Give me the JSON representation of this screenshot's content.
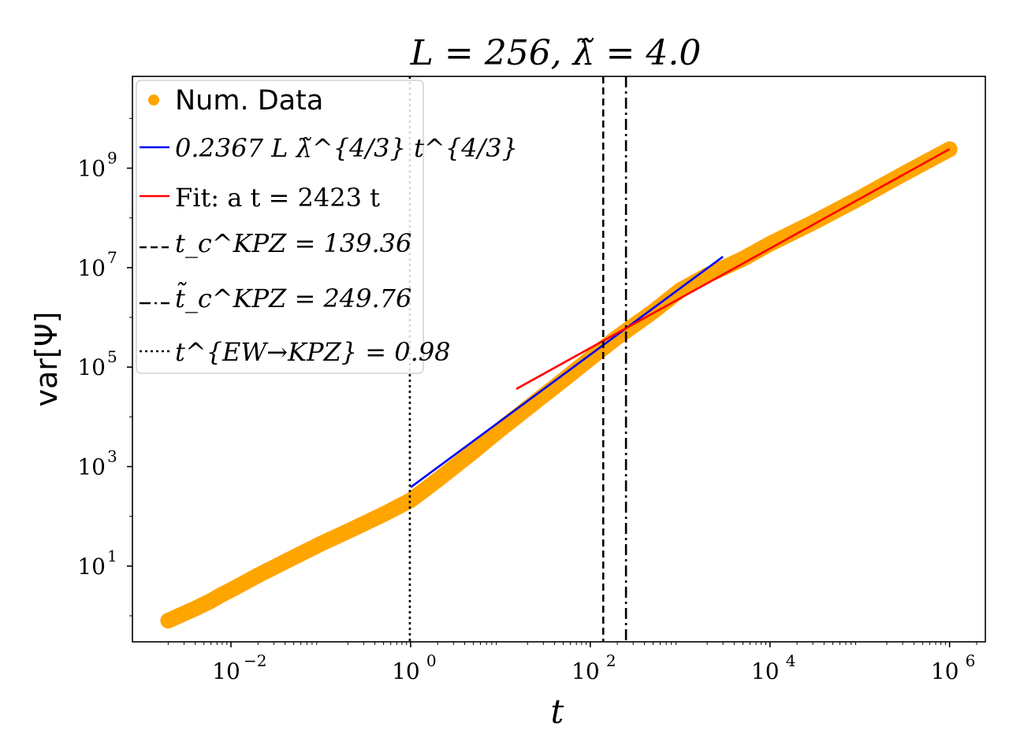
{
  "chart_data": {
    "type": "scatter",
    "title": "L = 256, λ̃ = 4.0",
    "xlabel": "t",
    "ylabel": "var[Ψ]",
    "xscale": "log",
    "yscale": "log",
    "xlim": [
      0.0008,
      2500000
    ],
    "ylim": [
      0.3,
      70000000000
    ],
    "grid": false,
    "legend_position": "top-left",
    "x_ticks": [
      {
        "value": 0.01,
        "label": "10",
        "exp": "−2"
      },
      {
        "value": 1,
        "label": "10",
        "exp": "0"
      },
      {
        "value": 100,
        "label": "10",
        "exp": "2"
      },
      {
        "value": 10000,
        "label": "10",
        "exp": "4"
      },
      {
        "value": 1000000,
        "label": "10",
        "exp": "6"
      }
    ],
    "y_ticks": [
      {
        "value": 10,
        "label": "10",
        "exp": "1"
      },
      {
        "value": 1000,
        "label": "10",
        "exp": "3"
      },
      {
        "value": 100000,
        "label": "10",
        "exp": "5"
      },
      {
        "value": 10000000,
        "label": "10",
        "exp": "7"
      },
      {
        "value": 1000000000,
        "label": "10",
        "exp": "9"
      }
    ],
    "series": [
      {
        "name": "Num. Data",
        "kind": "scatter",
        "color": "#ffa500",
        "x": [
          0.002,
          0.004,
          0.006,
          0.008,
          0.01,
          0.02,
          0.05,
          0.1,
          0.2,
          0.5,
          1,
          2,
          5,
          10,
          20,
          50,
          100,
          200,
          500,
          1000,
          2000,
          5000,
          10000,
          30000,
          100000,
          300000,
          1000000
        ],
        "y": [
          0.8,
          1.4,
          2.0,
          2.7,
          3.3,
          6.5,
          15,
          28,
          50,
          110,
          210,
          540,
          2000,
          5600,
          15000,
          55000,
          150000,
          400000,
          1300000,
          3500000,
          7000000,
          15000000,
          30000000,
          80000000,
          250000000,
          750000000,
          2400000000
        ]
      },
      {
        "name": "0.2367 L λ̃^{4/3} t^{4/3}",
        "kind": "line",
        "color": "#0000ff",
        "x": [
          1,
          3000
        ],
        "y": [
          383,
          16600000
        ]
      },
      {
        "name": "Fit: a t = 2423 t",
        "kind": "line",
        "color": "#ff0000",
        "x": [
          15,
          1000000
        ],
        "y": [
          36345,
          2423000000
        ]
      }
    ],
    "vlines": [
      {
        "name": "t_c^KPZ = 139.36",
        "x": 139.36,
        "style": "dashed",
        "color": "#000000"
      },
      {
        "name": "t̃_c^KPZ = 249.76",
        "x": 249.76,
        "style": "dashdot",
        "color": "#000000"
      },
      {
        "name": "t^{EW→KPZ} = 0.98",
        "x": 0.98,
        "style": "dotted",
        "color": "#000000"
      }
    ],
    "legend": [
      {
        "marker": "dot",
        "text": "Num. Data"
      },
      {
        "marker": "line-blue",
        "text": "0.2367 L λ̃^{4/3} t^{4/3}"
      },
      {
        "marker": "line-red",
        "text": "Fit: a t = 2423 t"
      },
      {
        "marker": "dashed",
        "text": "t_c^KPZ = 139.36"
      },
      {
        "marker": "dashdot",
        "text": "t̃_c^KPZ = 249.76"
      },
      {
        "marker": "dotted",
        "text": "t^{EW→KPZ} = 0.98"
      }
    ]
  },
  "colors": {
    "data": "#ffa500",
    "theory": "#0000ff",
    "fit": "#ff0000",
    "axes": "#000000"
  }
}
